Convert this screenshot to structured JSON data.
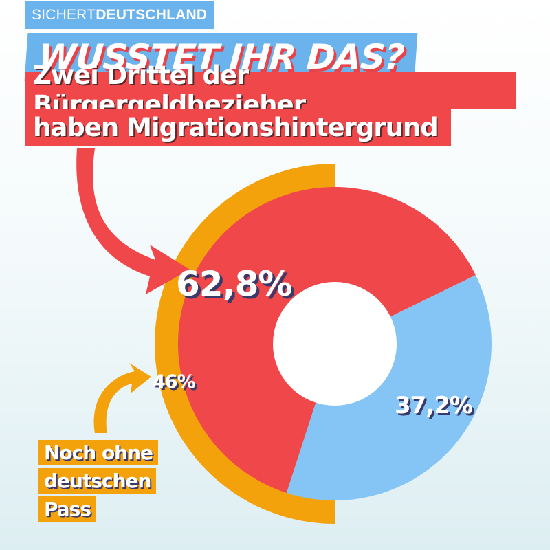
{
  "brand": {
    "part1": "SICHERT",
    "part2": "DEUTSCHLAND"
  },
  "headline": "WUSSTET IHR DAS?",
  "subtitle": {
    "line1": "Zwei Drittel der Bürgergeldbezieher",
    "line2": "haben Migrationshintergrund"
  },
  "note": {
    "line1": "Noch ohne",
    "line2": "deutschen",
    "line3": "Pass"
  },
  "colors": {
    "red": "#f0474b",
    "blue": "#85c5f5",
    "orange": "#f4a20c",
    "brand_blue": "#6ab3ec"
  },
  "chart_data": {
    "type": "pie",
    "variant": "donut",
    "slices": [
      {
        "label": "62,8%",
        "value": 62.8,
        "color": "#f0474b"
      },
      {
        "label": "37,2%",
        "value": 37.2,
        "color": "#85c5f5"
      }
    ],
    "outer_ring": {
      "label": "46%",
      "value": 46,
      "color": "#f4a20c"
    }
  }
}
